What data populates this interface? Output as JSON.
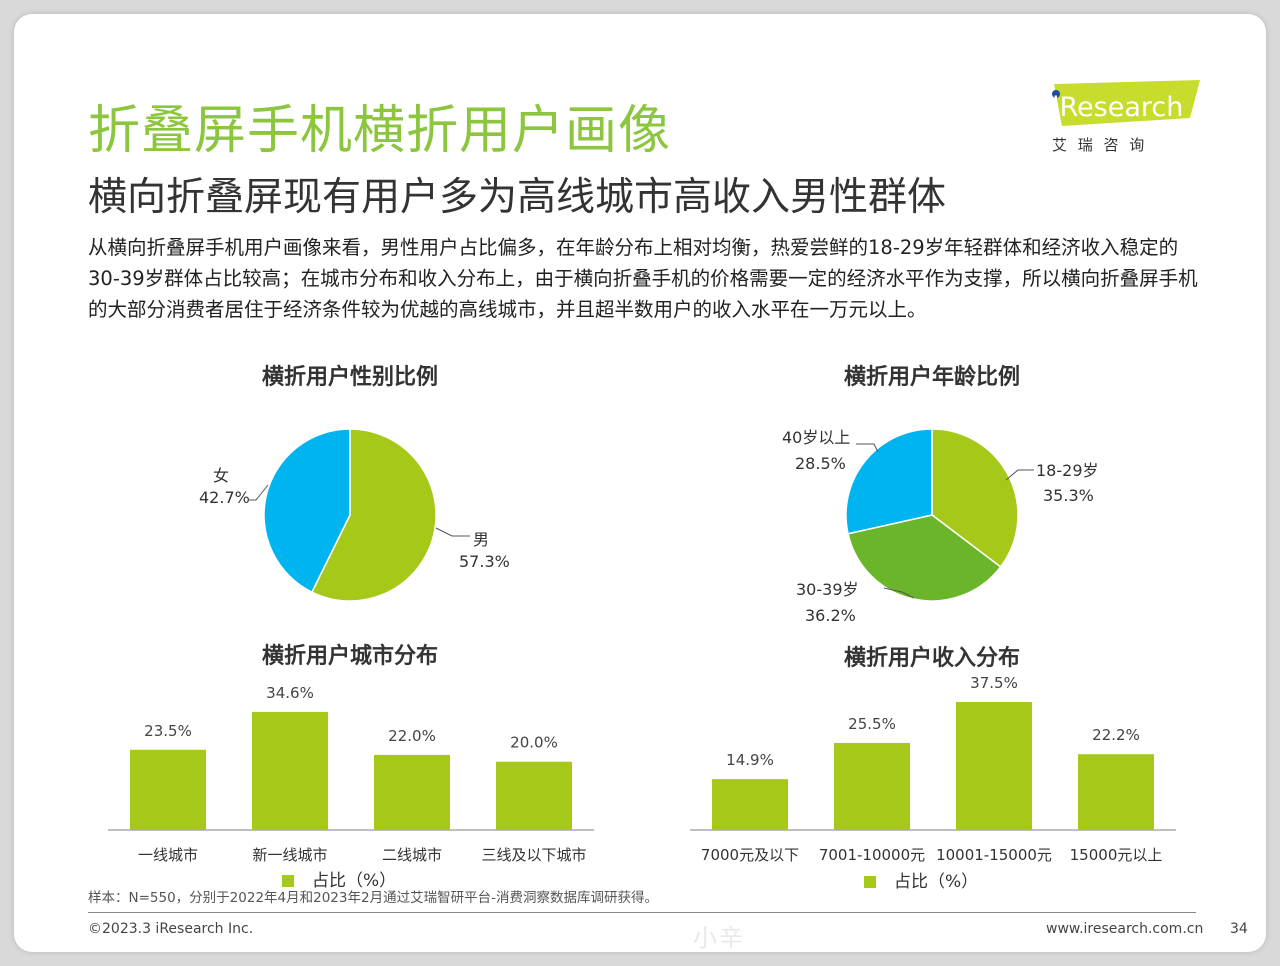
{
  "header": {
    "title": "折叠屏手机横折用户画像",
    "subtitle": "横向折叠屏现有用户多为高线城市高收入男性群体",
    "description": "从横向折叠屏手机用户画像来看，男性用户占比偏多，在年龄分布上相对均衡，热爱尝鲜的18-29岁年轻群体和经济收入稳定的30-39岁群体占比较高；在城市分布和收入分布上，由于横向折叠手机的价格需要一定的经济水平作为支撑，所以横向折叠屏手机的大部分消费者居住于经济条件较为优越的高线城市，并且超半数用户的收入水平在一万元以上。"
  },
  "logo": {
    "text": "iResearch",
    "chinese": "艾 瑞 咨 询",
    "color": "#c8dc2e"
  },
  "chart_data": [
    {
      "type": "pie",
      "title": "横折用户性别比例",
      "slices": [
        {
          "label": "男",
          "value_label": "57.3%",
          "value": 57.3,
          "color": "#a5c819"
        },
        {
          "label": "女",
          "value_label": "42.7%",
          "value": 42.7,
          "color": "#00b4ef"
        }
      ]
    },
    {
      "type": "pie",
      "title": "横折用户年龄比例",
      "slices": [
        {
          "label": "18-29岁",
          "value_label": "35.3%",
          "value": 35.3,
          "color": "#a5c819"
        },
        {
          "label": "30-39岁",
          "value_label": "36.2%",
          "value": 36.2,
          "color": "#6bb52b"
        },
        {
          "label": "40岁以上",
          "value_label": "28.5%",
          "value": 28.5,
          "color": "#00b4ef"
        }
      ]
    },
    {
      "type": "bar",
      "title": "横折用户城市分布",
      "categories": [
        "一线城市",
        "新一线城市",
        "二线城市",
        "三线及以下城市"
      ],
      "values": [
        23.5,
        34.6,
        22.0,
        20.0
      ],
      "value_labels": [
        "23.5%",
        "34.6%",
        "22.0%",
        "20.0%"
      ],
      "legend": "占比（%）",
      "color": "#a5c819"
    },
    {
      "type": "bar",
      "title": "横折用户收入分布",
      "categories": [
        "7000元及以下",
        "7001-10000元",
        "10001-15000元",
        "15000元以上"
      ],
      "values": [
        14.9,
        25.5,
        37.5,
        22.2
      ],
      "value_labels": [
        "14.9%",
        "25.5%",
        "37.5%",
        "22.2%"
      ],
      "legend": "占比（%）",
      "color": "#a5c819"
    }
  ],
  "footer": {
    "note": "样本：N=550，分别于2022年4月和2023年2月通过艾瑞智研平台-消费洞察数据库调研获得。",
    "copyright": "©2023.3 iResearch Inc.",
    "website": "www.iresearch.com.cn",
    "page": "34",
    "watermark": "小辛"
  }
}
